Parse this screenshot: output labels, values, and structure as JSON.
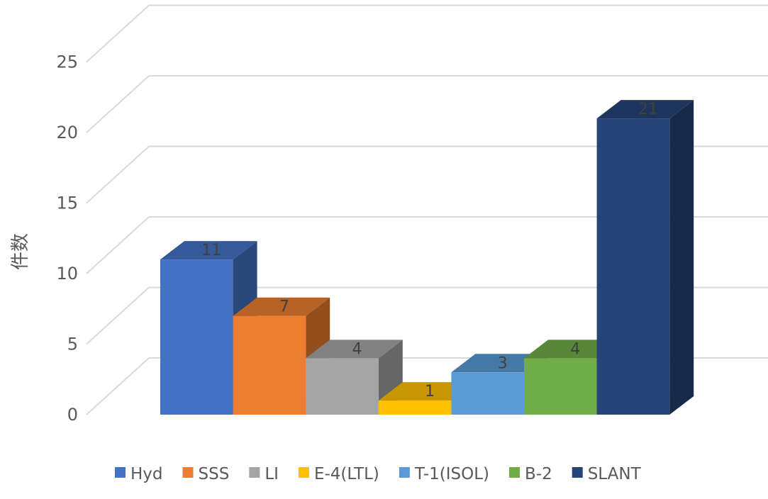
{
  "chart_data": {
    "type": "bar",
    "style": "3d-clustered-column",
    "title": "",
    "xlabel": "",
    "ylabel": "件数",
    "ylim": [
      0,
      25
    ],
    "yticks": [
      0,
      5,
      10,
      15,
      20,
      25
    ],
    "grid": true,
    "legend_position": "bottom",
    "data_labels": true,
    "categories": [
      ""
    ],
    "series": [
      {
        "name": "Hyd",
        "values": [
          11
        ],
        "color": "#4472C4"
      },
      {
        "name": "SSS",
        "values": [
          7
        ],
        "color": "#ED7D31"
      },
      {
        "name": "LI",
        "values": [
          4
        ],
        "color": "#A5A5A5"
      },
      {
        "name": "E-4(LTL)",
        "values": [
          1
        ],
        "color": "#FFC000"
      },
      {
        "name": "T-1(ISOL)",
        "values": [
          3
        ],
        "color": "#5B9BD5"
      },
      {
        "name": "B-2",
        "values": [
          4
        ],
        "color": "#70AD47"
      },
      {
        "name": "SLANT",
        "values": [
          21
        ],
        "color": "#264478"
      }
    ]
  }
}
